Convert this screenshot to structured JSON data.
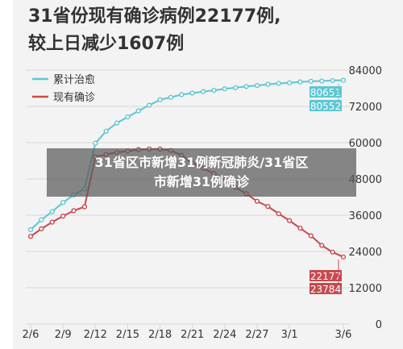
{
  "headline": {
    "line1": "31省份现有确诊病例22177例,",
    "line2": "较上日减少1607例"
  },
  "overlay": {
    "line1": "31省区市新增31例新冠肺炎/31省区",
    "line2": "市新增31例确诊"
  },
  "colors": {
    "cumulative": "#5dc6d2",
    "current": "#c64a4f",
    "grid": "#d7d7d7",
    "axis_text": "#333333"
  },
  "chart_data": {
    "type": "line",
    "x": [
      "2/6",
      "2/7",
      "2/8",
      "2/9",
      "2/10",
      "2/11",
      "2/12",
      "2/13",
      "2/14",
      "2/15",
      "2/16",
      "2/17",
      "2/18",
      "2/19",
      "2/20",
      "2/21",
      "2/22",
      "2/23",
      "2/24",
      "2/25",
      "2/26",
      "2/27",
      "2/28",
      "2/29",
      "3/1",
      "3/2",
      "3/3",
      "3/4",
      "3/5",
      "3/6"
    ],
    "x_tick_labels": [
      "2/6",
      "2/9",
      "2/12",
      "2/15",
      "2/18",
      "2/21",
      "2/24",
      "2/27",
      "3/1",
      "3/6"
    ],
    "y_tick_labels": [
      "84000",
      "72000",
      "60000",
      "48000",
      "36000",
      "24000",
      "12000",
      "0"
    ],
    "ylim": [
      0,
      84000
    ],
    "series": [
      {
        "name": "累计治愈",
        "values": [
          31200,
          34500,
          37200,
          40200,
          42700,
          44700,
          59800,
          63800,
          66500,
          68500,
          70500,
          72400,
          74200,
          75000,
          75900,
          76400,
          76900,
          77300,
          77800,
          78200,
          78600,
          78900,
          79300,
          79600,
          79800,
          80100,
          80300,
          80400,
          80552,
          80651
        ]
      },
      {
        "name": "现有确诊",
        "values": [
          29000,
          31500,
          33700,
          35700,
          37500,
          38800,
          55300,
          56100,
          56800,
          57200,
          57700,
          57900,
          57900,
          57400,
          55800,
          53200,
          51500,
          49800,
          47700,
          45200,
          43100,
          40600,
          38900,
          36500,
          34200,
          31700,
          29200,
          26000,
          23784,
          22177
        ]
      }
    ],
    "end_labels": {
      "cumulative": [
        "80651",
        "80552"
      ],
      "current": [
        "22177",
        "23784"
      ]
    }
  }
}
